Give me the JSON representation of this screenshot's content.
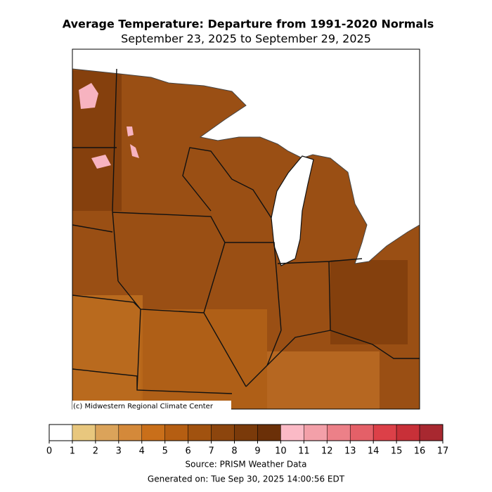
{
  "title": "Average Temperature: Departure from 1991-2020 Normals",
  "subtitle": "September 23, 2025 to September 29, 2025",
  "credit": "(c) Midwestern Regional Climate Center",
  "colorbar": {
    "ticks": [
      0,
      1,
      2,
      3,
      4,
      5,
      6,
      7,
      8,
      9,
      10,
      11,
      12,
      13,
      14,
      15,
      16,
      17
    ],
    "colors": [
      "#ffffff",
      "#e8c77e",
      "#dba35a",
      "#d4893a",
      "#c96f1a",
      "#b55e12",
      "#a1520f",
      "#8c450d",
      "#7a3a0a",
      "#6b3008",
      "#fbbac6",
      "#f3a0a9",
      "#ec8088",
      "#e46068",
      "#dc4048",
      "#c83038",
      "#a82830"
    ]
  },
  "source": "Source: PRISM Weather Data",
  "generated": "Generated on: Tue Sep 30, 2025 14:00:56 EDT"
}
